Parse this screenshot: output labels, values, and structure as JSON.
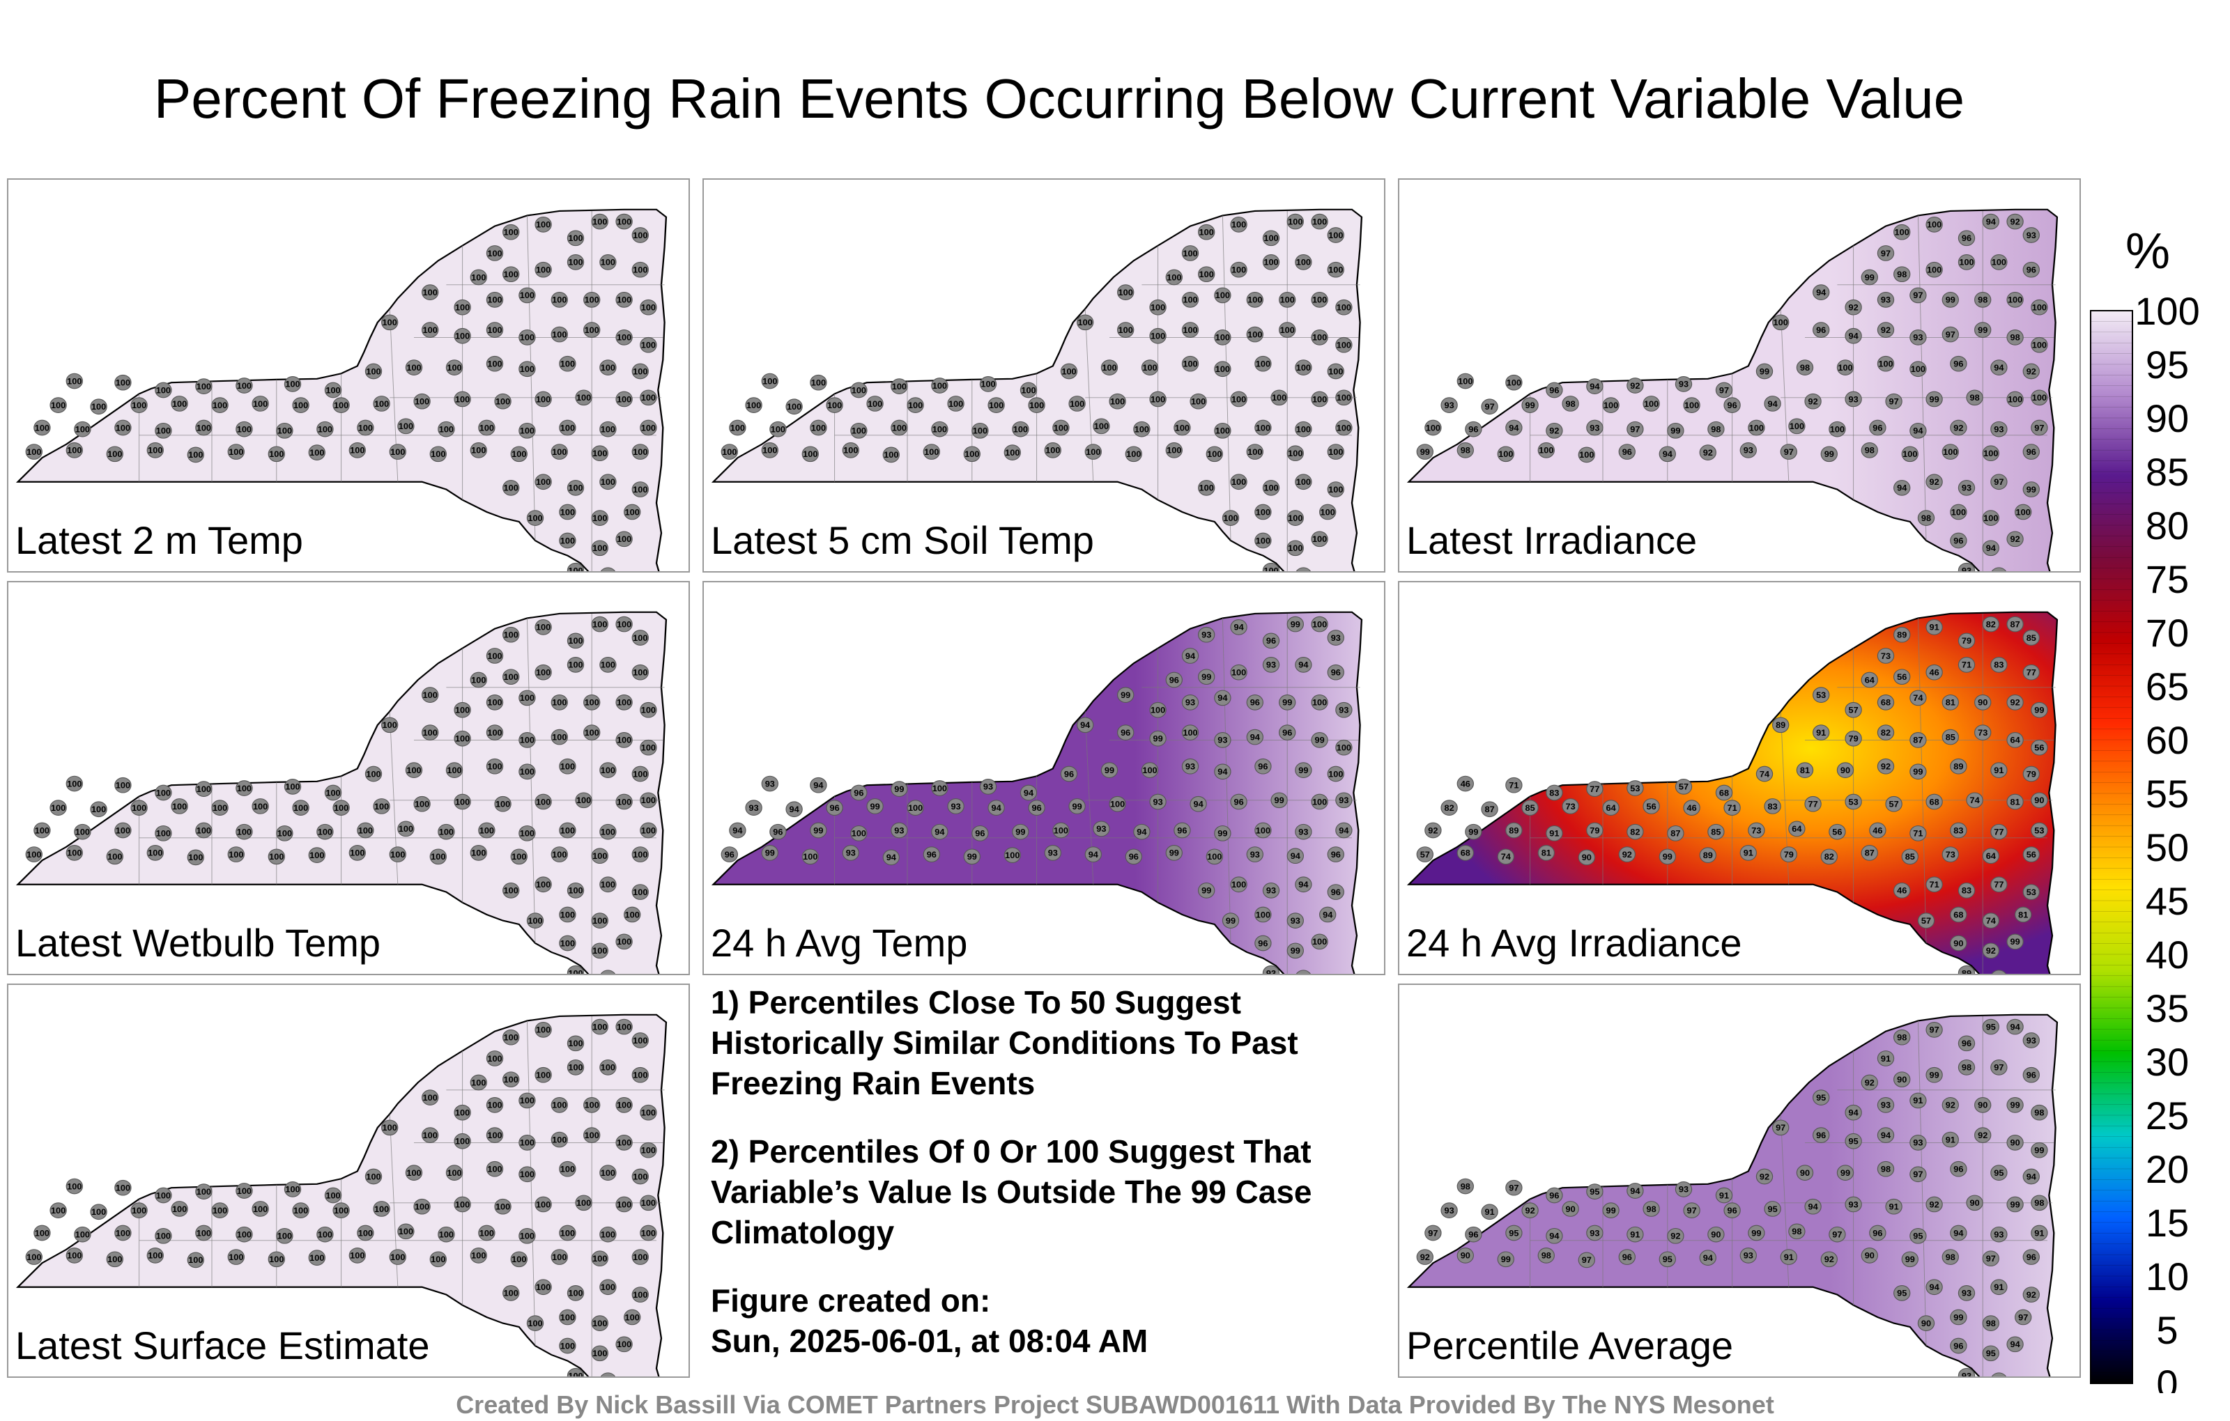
{
  "title": "Percent Of Freezing Rain Events Occurring Below Current Variable Value",
  "panels": [
    {
      "label": "Latest 2 m Temp",
      "fill": "#efe6f1",
      "grad": "",
      "values": [
        "100"
      ]
    },
    {
      "label": "Latest 5 cm Soil Temp",
      "fill": "#efe6f1",
      "grad": "",
      "values": [
        "100"
      ]
    },
    {
      "label": "Latest Irradiance",
      "fill": "#ead9ee",
      "grad": "#c9a7d6",
      "values": [
        "100",
        "100",
        "96",
        "94",
        "92",
        "93",
        "97",
        "99",
        "98",
        "100"
      ]
    },
    {
      "label": "Latest Wetbulb Temp",
      "fill": "#efe6f1",
      "grad": "",
      "values": [
        "100"
      ]
    },
    {
      "label": "24 h Avg Temp",
      "fill": "#7f3fa6",
      "grad": "#dbc6e6",
      "values": [
        "93",
        "94",
        "96",
        "99",
        "100"
      ]
    },
    {
      "label": "24 h Avg Irradiance",
      "fill": "#c21a10",
      "grad": "",
      "values": [
        "89",
        "91",
        "79",
        "82",
        "87",
        "85",
        "73",
        "64",
        "56",
        "46",
        "71",
        "83",
        "77",
        "53",
        "57",
        "68",
        "74",
        "81",
        "90",
        "92",
        "99"
      ]
    },
    {
      "label": "Latest Surface Estimate",
      "fill": "#efe6f1",
      "grad": "",
      "values": [
        "100"
      ]
    },
    {
      "label": "Percentile Average",
      "fill": "#a77ac4",
      "grad": "#e0cfe9",
      "values": [
        "98",
        "97",
        "96",
        "95",
        "94",
        "93",
        "91",
        "92",
        "90",
        "99"
      ]
    }
  ],
  "notes": [
    "1) Percentiles Close To 50 Suggest Historically Similar Conditions To Past Freezing Rain Events",
    "2) Percentiles Of 0 Or 100 Suggest That Variable’s Value Is Outside The 99 Case Climatology",
    "Figure created on:",
    "Sun, 2025-06-01, at 08:04 AM"
  ],
  "colorbar": {
    "unit": "%",
    "ticks": [
      "100",
      "95",
      "90",
      "85",
      "80",
      "75",
      "70",
      "65",
      "60",
      "55",
      "50",
      "45",
      "40",
      "35",
      "30",
      "25",
      "20",
      "15",
      "10",
      "5",
      "0"
    ],
    "stops": [
      "#f3ecf5",
      "#b48bcf",
      "#5a1a8e",
      "#7a0a3a",
      "#c00000",
      "#ff2a00",
      "#ff8c00",
      "#ffe000",
      "#b0e000",
      "#00c000",
      "#00c8c8",
      "#0060ff",
      "#00008c",
      "#000000"
    ]
  },
  "credit": "Created By Nick Bassill Via COMET Partners Project SUBAWD001611 With Data Provided By The NYS Mesonet"
}
